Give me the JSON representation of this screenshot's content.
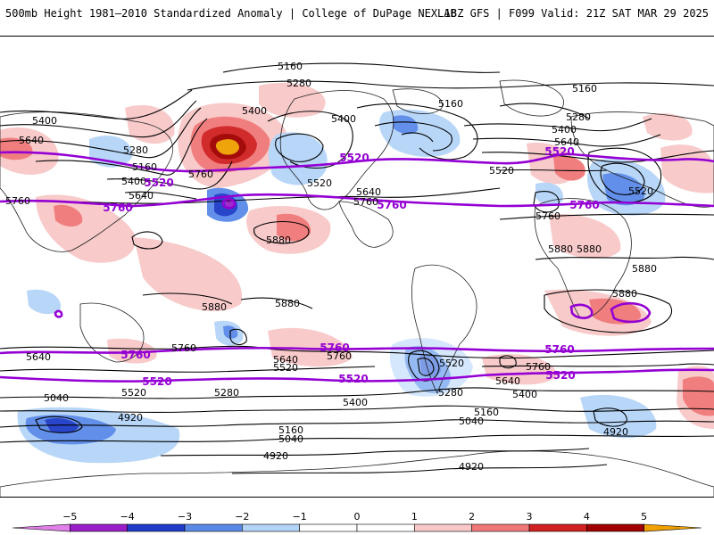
{
  "header": {
    "left_title": "500mb Height 1981–2010 Standardized Anomaly | College of DuPage NEXLAB",
    "right_title": "18Z GFS | F099 Valid: 21Z SAT MAR 29 2025"
  },
  "colors": {
    "anom_-5": "#e080e8",
    "anom_-4": "#9a1ec8",
    "anom_-3": "#1e3cc8",
    "anom_-2": "#5a8ae8",
    "anom_-1": "#b4d4f8",
    "anom_1": "#f8c8c8",
    "anom_2": "#f07878",
    "anom_3": "#d02020",
    "anom_4": "#a00000",
    "anom_5": "#f0a000",
    "highlight_contour": "#9400d3"
  },
  "legend": {
    "ticks": [
      "−5",
      "−4",
      "−3",
      "−2",
      "−1",
      "0",
      "1",
      "2",
      "3",
      "4",
      "5"
    ]
  },
  "contour_labels": {
    "black": [
      {
        "text": "5160",
        "pos": "top-center-1"
      },
      {
        "text": "5280",
        "pos": "top-center-2"
      },
      {
        "text": "5160",
        "pos": "top-right-1"
      },
      {
        "text": "5400",
        "pos": "upper-left-1"
      },
      {
        "text": "5400",
        "pos": "upper-center-1"
      },
      {
        "text": "5400",
        "pos": "upper-center-2"
      },
      {
        "text": "5160",
        "pos": "upper-center-3"
      },
      {
        "text": "5280",
        "pos": "upper-right-1"
      },
      {
        "text": "5400",
        "pos": "upper-right-2"
      },
      {
        "text": "5640",
        "pos": "upper-right-3"
      },
      {
        "text": "5640",
        "pos": "left-1"
      },
      {
        "text": "5160",
        "pos": "left-2"
      },
      {
        "text": "5280",
        "pos": "left-3"
      },
      {
        "text": "5400",
        "pos": "left-4"
      },
      {
        "text": "5640",
        "pos": "left-5"
      },
      {
        "text": "5760",
        "pos": "left-6"
      },
      {
        "text": "5760",
        "pos": "center-1"
      },
      {
        "text": "5520",
        "pos": "center-2"
      },
      {
        "text": "5640",
        "pos": "center-3"
      },
      {
        "text": "5760",
        "pos": "center-4"
      },
      {
        "text": "5520",
        "pos": "right-1"
      },
      {
        "text": "5520",
        "pos": "right-2"
      },
      {
        "text": "5760",
        "pos": "right-3"
      },
      {
        "text": "5880",
        "pos": "mid-1"
      },
      {
        "text": "5880",
        "pos": "mid-2"
      },
      {
        "text": "5880",
        "pos": "mid-3"
      },
      {
        "text": "5880",
        "pos": "mid-4"
      },
      {
        "text": "5880",
        "pos": "mid-5"
      },
      {
        "text": "5880",
        "pos": "mid-6"
      },
      {
        "text": "5880",
        "pos": "mid-7"
      },
      {
        "text": "5640",
        "pos": "south-1"
      },
      {
        "text": "5760",
        "pos": "south-2"
      },
      {
        "text": "5640",
        "pos": "south-3"
      },
      {
        "text": "5520",
        "pos": "south-4"
      },
      {
        "text": "5760",
        "pos": "south-5"
      },
      {
        "text": "5520",
        "pos": "south-6"
      },
      {
        "text": "5760",
        "pos": "south-7"
      },
      {
        "text": "5640",
        "pos": "south-8"
      },
      {
        "text": "5400",
        "pos": "south-9"
      },
      {
        "text": "5520",
        "pos": "south-10"
      },
      {
        "text": "5280",
        "pos": "south-11"
      },
      {
        "text": "5400",
        "pos": "south-12"
      },
      {
        "text": "5280",
        "pos": "south-13"
      },
      {
        "text": "5040",
        "pos": "south-14"
      },
      {
        "text": "5160",
        "pos": "south-15"
      },
      {
        "text": "5040",
        "pos": "south-16"
      },
      {
        "text": "4920",
        "pos": "south-17"
      },
      {
        "text": "5160",
        "pos": "south-18"
      },
      {
        "text": "5040",
        "pos": "south-19"
      },
      {
        "text": "4920",
        "pos": "south-20"
      },
      {
        "text": "4920",
        "pos": "south-21"
      },
      {
        "text": "4920",
        "pos": "south-22"
      }
    ],
    "purple": [
      {
        "text": "5520",
        "pos": "n1"
      },
      {
        "text": "5520",
        "pos": "n2"
      },
      {
        "text": "5520",
        "pos": "n3"
      },
      {
        "text": "5760",
        "pos": "n4"
      },
      {
        "text": "5760",
        "pos": "n5"
      },
      {
        "text": "5760",
        "pos": "n6"
      },
      {
        "text": "5760",
        "pos": "s1"
      },
      {
        "text": "5760",
        "pos": "s2"
      },
      {
        "text": "5760",
        "pos": "s3"
      },
      {
        "text": "5520",
        "pos": "s4"
      },
      {
        "text": "5520",
        "pos": "s5"
      },
      {
        "text": "5520",
        "pos": "s6"
      }
    ]
  }
}
